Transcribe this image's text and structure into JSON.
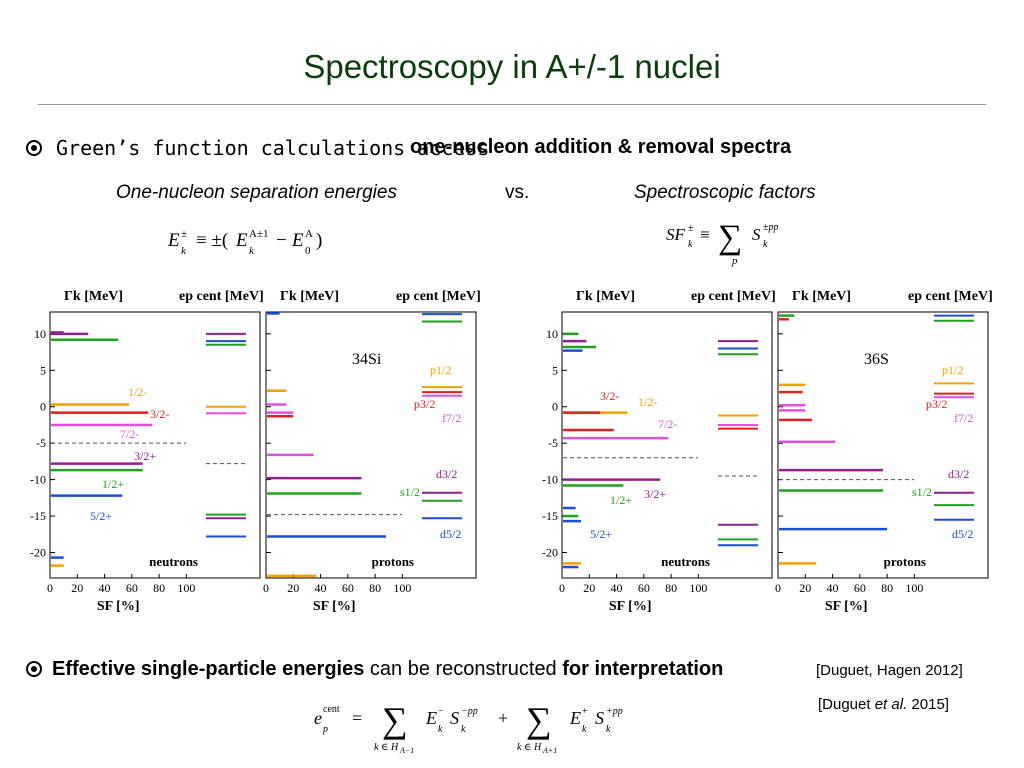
{
  "slide": {
    "title": "Spectroscopy in A+/-1 nuclei"
  },
  "bullet1": {
    "prefix": "Green’s function calculations access",
    "highlight": "one-nucleon addition & removal spectra"
  },
  "subrow": {
    "left": "One-nucleon separation energies",
    "middle": "vs.",
    "right": "Spectroscopic factors"
  },
  "formulas": {
    "separation_energy": "E_k^± ≡ ±(E_k^{A±1} − E_0^A)",
    "spectroscopic_factor": "SF_k^± ≡ Σ_p S_k^{±pp}",
    "centroid": "e_p^cent = Σ_{k∈H_{A−1}} E_k^− S_k^{−pp} + Σ_{k∈H_{A+1}} E_k^+ S_k^{+pp}"
  },
  "bullet2": {
    "bold1": "Effective single-particle energies",
    "normal": "can be reconstructed",
    "bold2": "for interpretation"
  },
  "references": {
    "ref1": "[Duguet, Hagen 2012]",
    "ref2_a": "[Duguet ",
    "ref2_b": "et al.",
    "ref2_c": " 2015]"
  },
  "colors": {
    "title": "#0b3d0b",
    "orange": "#f5a000",
    "red": "#e02020",
    "pink": "#e050e0",
    "purple": "#902090",
    "green": "#20a020",
    "blue": "#1a4fd0",
    "dashed": "#505050"
  },
  "chart_data": [
    {
      "type": "bar",
      "nucleus": "34Si",
      "panel_labels": {
        "gamma_label": "Γk [MeV]",
        "cent_label": "ep cent [MeV]",
        "neutrons": "neutrons",
        "protons": "protons",
        "xlabel": "SF [%]",
        "nucleus_label": "34Si"
      },
      "y_ticks": [
        10,
        5,
        0,
        -5,
        -10,
        -15,
        -20
      ],
      "x_ticks": [
        0,
        20,
        40,
        60,
        80,
        100
      ],
      "ylim": [
        -23.5,
        13
      ],
      "xlim": [
        0,
        110
      ],
      "neutron_spectrum": [
        {
          "energy": 10.2,
          "sf": 10,
          "color": "purple"
        },
        {
          "energy": 10.0,
          "sf": 28,
          "color": "purple"
        },
        {
          "energy": 9.2,
          "sf": 50,
          "color": "green"
        },
        {
          "energy": 0.3,
          "sf": 58,
          "color": "orange"
        },
        {
          "energy": -0.8,
          "sf": 72,
          "color": "red"
        },
        {
          "energy": -2.5,
          "sf": 75,
          "color": "pink"
        },
        {
          "energy": -7.8,
          "sf": 68,
          "color": "purple"
        },
        {
          "energy": -8.7,
          "sf": 68,
          "color": "green"
        },
        {
          "energy": -12.2,
          "sf": 53,
          "color": "blue"
        },
        {
          "energy": -20.7,
          "sf": 10,
          "color": "blue"
        },
        {
          "energy": -21.8,
          "sf": 10,
          "color": "orange"
        }
      ],
      "neutron_centroids": [
        {
          "energy": 10.0,
          "color": "purple"
        },
        {
          "energy": 9.0,
          "color": "blue"
        },
        {
          "energy": 8.5,
          "color": "green"
        },
        {
          "energy": 0.0,
          "color": "orange"
        },
        {
          "energy": -0.9,
          "color": "pink"
        },
        {
          "energy": -14.8,
          "color": "green"
        },
        {
          "energy": -15.3,
          "color": "purple"
        },
        {
          "energy": -17.8,
          "color": "blue"
        }
      ],
      "neutron_fermi": -5.0,
      "neutron_centroid_fermi": -7.8,
      "neutron_labels": [
        "1/2-",
        "3/2-",
        "7/2-",
        "3/2+",
        "1/2+",
        "5/2+"
      ],
      "proton_spectrum": [
        {
          "energy": 12.8,
          "sf": 10,
          "color": "blue"
        },
        {
          "energy": 2.2,
          "sf": 15,
          "color": "orange"
        },
        {
          "energy": 0.3,
          "sf": 15,
          "color": "pink"
        },
        {
          "energy": -0.8,
          "sf": 20,
          "color": "pink"
        },
        {
          "energy": -1.3,
          "sf": 20,
          "color": "red"
        },
        {
          "energy": -6.6,
          "sf": 35,
          "color": "pink"
        },
        {
          "energy": -9.8,
          "sf": 70,
          "color": "purple"
        },
        {
          "energy": -11.9,
          "sf": 70,
          "color": "green"
        },
        {
          "energy": -17.8,
          "sf": 88,
          "color": "blue"
        },
        {
          "energy": -23.2,
          "sf": 37,
          "color": "orange"
        }
      ],
      "proton_centroids": [
        {
          "energy": 12.7,
          "color": "blue"
        },
        {
          "energy": 11.7,
          "color": "green"
        },
        {
          "energy": 2.7,
          "color": "orange"
        },
        {
          "energy": 2.0,
          "color": "red"
        },
        {
          "energy": 1.5,
          "color": "pink"
        },
        {
          "energy": -11.8,
          "color": "purple"
        },
        {
          "energy": -12.9,
          "color": "green"
        },
        {
          "energy": -15.3,
          "color": "blue"
        }
      ],
      "proton_fermi": -14.8,
      "proton_labels": [
        "p1/2",
        "p3/2",
        "f7/2",
        "d3/2",
        "s1/2",
        "d5/2"
      ]
    },
    {
      "type": "bar",
      "nucleus": "36S",
      "panel_labels": {
        "gamma_label": "Γk [MeV]",
        "cent_label": "ep cent [MeV]",
        "neutrons": "neutrons",
        "protons": "protons",
        "xlabel": "SF [%]",
        "nucleus_label": "36S"
      },
      "y_ticks": [
        10,
        5,
        0,
        -5,
        -10,
        -15,
        -20
      ],
      "x_ticks": [
        0,
        20,
        40,
        60,
        80,
        100
      ],
      "ylim": [
        -23.5,
        13
      ],
      "xlim": [
        0,
        110
      ],
      "neutron_spectrum": [
        {
          "energy": 10.0,
          "sf": 12,
          "color": "green"
        },
        {
          "energy": 9.0,
          "sf": 18,
          "color": "purple"
        },
        {
          "energy": 8.2,
          "sf": 25,
          "color": "green"
        },
        {
          "energy": 7.7,
          "sf": 15,
          "color": "blue"
        },
        {
          "energy": -0.8,
          "sf": 48,
          "color": "orange"
        },
        {
          "energy": -0.8,
          "sf": 28,
          "color": "red"
        },
        {
          "energy": -3.2,
          "sf": 38,
          "color": "red"
        },
        {
          "energy": -4.3,
          "sf": 78,
          "color": "pink"
        },
        {
          "energy": -10.0,
          "sf": 72,
          "color": "purple"
        },
        {
          "energy": -10.8,
          "sf": 45,
          "color": "green"
        },
        {
          "energy": -13.9,
          "sf": 10,
          "color": "blue"
        },
        {
          "energy": -15.0,
          "sf": 12,
          "color": "green"
        },
        {
          "energy": -15.7,
          "sf": 14,
          "color": "blue"
        },
        {
          "energy": -21.5,
          "sf": 14,
          "color": "orange"
        },
        {
          "energy": -22.0,
          "sf": 12,
          "color": "blue"
        }
      ],
      "neutron_centroids": [
        {
          "energy": 9.0,
          "color": "purple"
        },
        {
          "energy": 8.0,
          "color": "blue"
        },
        {
          "energy": 7.2,
          "color": "green"
        },
        {
          "energy": -1.2,
          "color": "orange"
        },
        {
          "energy": -2.5,
          "color": "pink"
        },
        {
          "energy": -3.0,
          "color": "red"
        },
        {
          "energy": -16.2,
          "color": "purple"
        },
        {
          "energy": -18.2,
          "color": "green"
        },
        {
          "energy": -19.0,
          "color": "blue"
        }
      ],
      "neutron_fermi": -7.0,
      "neutron_centroid_fermi": -9.5,
      "neutron_labels": [
        "3/2-",
        "1/2-",
        "7/2-",
        "1/2+",
        "3/2+",
        "5/2+"
      ],
      "proton_spectrum": [
        {
          "energy": 12.5,
          "sf": 12,
          "color": "green"
        },
        {
          "energy": 12.0,
          "sf": 8,
          "color": "red"
        },
        {
          "energy": 3.0,
          "sf": 20,
          "color": "orange"
        },
        {
          "energy": 2.0,
          "sf": 18,
          "color": "red"
        },
        {
          "energy": 0.2,
          "sf": 20,
          "color": "pink"
        },
        {
          "energy": -0.5,
          "sf": 20,
          "color": "pink"
        },
        {
          "energy": -1.8,
          "sf": 25,
          "color": "red"
        },
        {
          "energy": -4.8,
          "sf": 42,
          "color": "pink"
        },
        {
          "energy": -8.7,
          "sf": 77,
          "color": "purple"
        },
        {
          "energy": -11.5,
          "sf": 77,
          "color": "green"
        },
        {
          "energy": -16.8,
          "sf": 80,
          "color": "blue"
        },
        {
          "energy": -21.5,
          "sf": 28,
          "color": "orange"
        }
      ],
      "proton_centroids": [
        {
          "energy": 12.5,
          "color": "blue"
        },
        {
          "energy": 11.8,
          "color": "green"
        },
        {
          "energy": 3.2,
          "color": "orange"
        },
        {
          "energy": 1.8,
          "color": "red"
        },
        {
          "energy": 1.3,
          "color": "pink"
        },
        {
          "energy": -11.8,
          "color": "purple"
        },
        {
          "energy": -13.5,
          "color": "green"
        },
        {
          "energy": -15.5,
          "color": "blue"
        }
      ],
      "proton_fermi": -10.0,
      "proton_labels": [
        "p1/2",
        "p3/2",
        "f7/2",
        "d3/2",
        "s1/2",
        "d5/2"
      ]
    }
  ]
}
